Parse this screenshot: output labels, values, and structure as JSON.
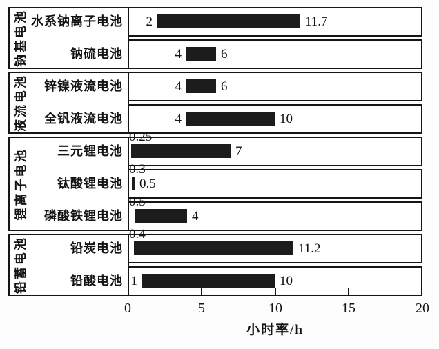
{
  "chart_data": {
    "type": "bar",
    "orientation": "horizontal-range",
    "title": "",
    "xlabel": "小时率/h",
    "ylabel": "",
    "xlim": [
      0,
      20
    ],
    "xticks": [
      "0",
      "5",
      "10",
      "15",
      "20"
    ],
    "grid": false,
    "legend": null,
    "groups": [
      {
        "label": "钠基电池",
        "rows": [
          0,
          1
        ]
      },
      {
        "label": "液流电池",
        "rows": [
          2,
          3
        ]
      },
      {
        "label": "锂离子电池",
        "rows": [
          4,
          5,
          6
        ]
      },
      {
        "label": "铅蓄电池",
        "rows": [
          7,
          8
        ]
      }
    ],
    "bars": [
      {
        "category": "水系钠离子电池",
        "min": 2,
        "max": 11.7,
        "min_label": "2",
        "max_label": "11.7",
        "min_label_position": "left"
      },
      {
        "category": "钠硫电池",
        "min": 4,
        "max": 6,
        "min_label": "4",
        "max_label": "6",
        "min_label_position": "left"
      },
      {
        "category": "锌镍液流电池",
        "min": 4,
        "max": 6,
        "min_label": "4",
        "max_label": "6",
        "min_label_position": "left"
      },
      {
        "category": "全钒液流电池",
        "min": 4,
        "max": 10,
        "min_label": "4",
        "max_label": "10",
        "min_label_position": "left"
      },
      {
        "category": "三元锂电池",
        "min": 0.25,
        "max": 7,
        "min_label": "0.25",
        "max_label": "7",
        "min_label_position": "above"
      },
      {
        "category": "钛酸锂电池",
        "min": 0.3,
        "max": 0.5,
        "min_label": "0.3",
        "max_label": "0.5",
        "min_label_position": "above"
      },
      {
        "category": "磷酸铁锂电池",
        "min": 0.5,
        "max": 4,
        "min_label": "0.5",
        "max_label": "4",
        "min_label_position": "above"
      },
      {
        "category": "铅炭电池",
        "min": 0.4,
        "max": 11.2,
        "min_label": "0.4",
        "max_label": "11.2",
        "min_label_position": "above"
      },
      {
        "category": "铅酸电池",
        "min": 1,
        "max": 10,
        "min_label": "1",
        "max_label": "10",
        "min_label_position": "left"
      }
    ]
  },
  "colors": {
    "bar": "#1c1c1c",
    "border": "#151515",
    "text": "#141414",
    "background": "#fdfdfd"
  }
}
